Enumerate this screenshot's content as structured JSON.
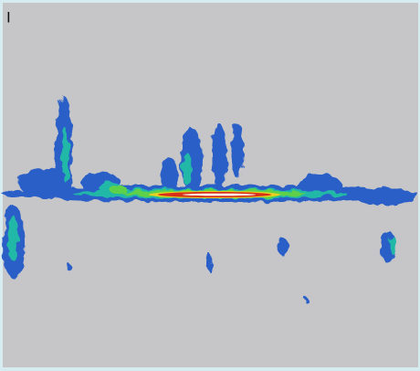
{
  "label": "I"
}
